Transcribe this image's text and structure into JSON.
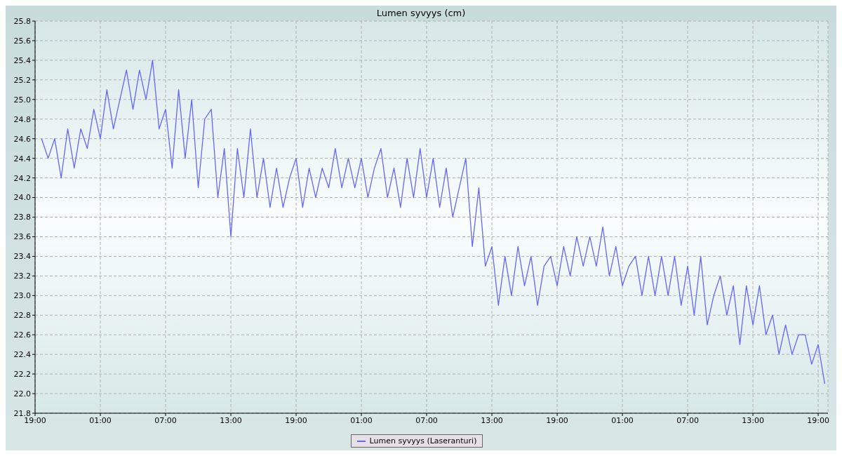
{
  "chart_data": {
    "type": "line",
    "title": "Lumen syvyys (cm)",
    "categories": [
      "19:00",
      null,
      null,
      null,
      null,
      null,
      null,
      null,
      null,
      null,
      "01:00",
      null,
      null,
      null,
      null,
      null,
      null,
      null,
      null,
      null,
      "07:00",
      null,
      null,
      null,
      null,
      null,
      null,
      null,
      null,
      null,
      "13:00",
      null,
      null,
      null,
      null,
      null,
      null,
      null,
      null,
      null,
      "19:00",
      null,
      null,
      null,
      null,
      null,
      null,
      null,
      null,
      null,
      "01:00",
      null,
      null,
      null,
      null,
      null,
      null,
      null,
      null,
      null,
      "07:00",
      null,
      null,
      null,
      null,
      null,
      null,
      null,
      null,
      null,
      "13:00",
      null,
      null,
      null,
      null,
      null,
      null,
      null,
      null,
      null,
      "19:00",
      null,
      null,
      null,
      null,
      null,
      null,
      null,
      null,
      null,
      "01:00",
      null,
      null,
      null,
      null,
      null,
      null,
      null,
      null,
      null,
      "07:00",
      null,
      null,
      null,
      null,
      null,
      null,
      null,
      null,
      null,
      "13:00",
      null,
      null,
      null,
      null,
      null,
      null,
      null,
      null,
      null,
      "19:00",
      null
    ],
    "series": [
      {
        "name": "Lumen syvyys (Laseranturi)",
        "color": "#6666ff",
        "values": [
          null,
          24.6,
          24.4,
          24.6,
          24.2,
          24.7,
          24.3,
          24.7,
          24.5,
          24.9,
          24.6,
          25.1,
          24.7,
          25.0,
          25.3,
          24.9,
          25.3,
          25.0,
          25.4,
          24.7,
          24.9,
          24.3,
          25.1,
          24.4,
          25.0,
          24.1,
          24.8,
          24.9,
          24.0,
          24.5,
          23.6,
          24.5,
          24.0,
          24.7,
          24.0,
          24.4,
          23.9,
          24.3,
          23.9,
          24.2,
          24.4,
          23.9,
          24.3,
          24.0,
          24.3,
          24.1,
          24.5,
          24.1,
          24.4,
          24.1,
          24.4,
          24.0,
          24.3,
          24.5,
          24.0,
          24.3,
          23.9,
          24.4,
          24.0,
          24.5,
          24.0,
          24.4,
          23.9,
          24.3,
          23.8,
          24.1,
          24.4,
          23.5,
          24.1,
          23.3,
          23.5,
          22.9,
          23.4,
          23.0,
          23.5,
          23.1,
          23.4,
          22.9,
          23.3,
          23.4,
          23.1,
          23.5,
          23.2,
          23.6,
          23.3,
          23.6,
          23.3,
          23.7,
          23.2,
          23.5,
          23.1,
          23.3,
          23.4,
          23.0,
          23.4,
          23.0,
          23.4,
          23.0,
          23.4,
          22.9,
          23.3,
          22.8,
          23.4,
          22.7,
          23.0,
          23.2,
          22.8,
          23.1,
          22.5,
          23.1,
          22.7,
          23.1,
          22.6,
          22.8,
          22.4,
          22.7,
          22.4,
          22.6,
          22.6,
          22.3,
          22.5,
          22.1
        ]
      }
    ],
    "ylim": [
      21.8,
      25.8
    ],
    "yticks": [
      21.8,
      {
        "value": 22,
        "label": "22.0"
      },
      22.2,
      22.4,
      22.6,
      22.8,
      {
        "value": 23,
        "label": "23.0"
      },
      23.2,
      23.4,
      23.6,
      23.8,
      {
        "value": 24,
        "label": "24.0"
      },
      24.2,
      24.4,
      24.6,
      24.8,
      {
        "value": 25,
        "label": "25.0"
      },
      25.2,
      25.4,
      25.6,
      25.8
    ],
    "grid": true,
    "legend": "bottom",
    "marker": "none",
    "line_style": "solid"
  }
}
